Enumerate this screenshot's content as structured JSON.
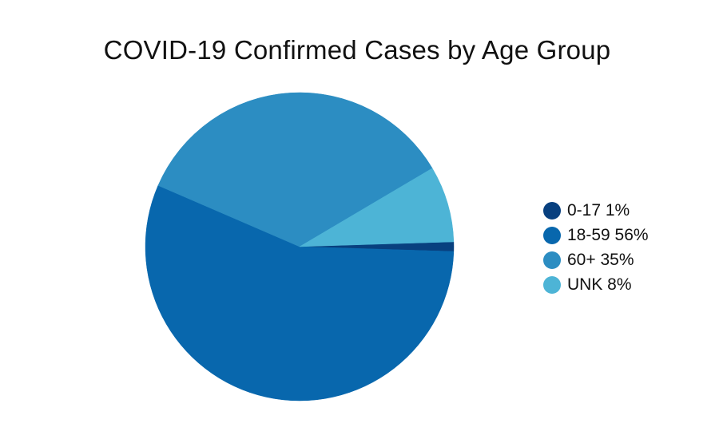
{
  "chart_data": {
    "type": "pie",
    "title": "COVID-19 Confirmed Cases by Age Group",
    "categories": [
      "0-17",
      "18-59",
      "60+",
      "UNK"
    ],
    "values": [
      1,
      56,
      35,
      8
    ],
    "legend_labels": [
      "0-17 1%",
      "18-59 56%",
      "60+ 35%",
      "UNK 8%"
    ],
    "colors": [
      "#08407f",
      "#0867ad",
      "#2c8dc2",
      "#4db4d6"
    ],
    "legend_position": "right"
  }
}
